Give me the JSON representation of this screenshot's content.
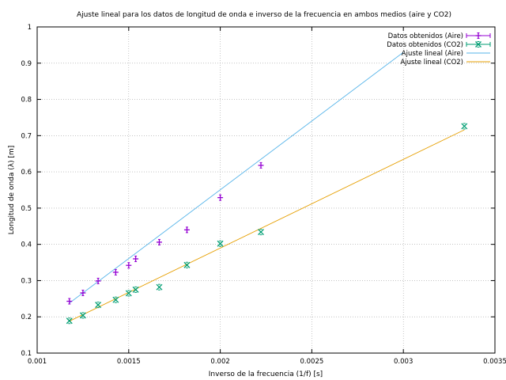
{
  "chart_data": {
    "type": "scatter",
    "title": "Ajuste lineal para los datos de longitud de onda e inverso de la frecuencia en ambos medios (aire y CO2)",
    "xlabel": "Inverso de la frecuencia (1/f) [s]",
    "ylabel": "Longitud de onda (λ) [m]",
    "xlim": [
      0.001,
      0.0035
    ],
    "ylim": [
      0.1,
      1.0
    ],
    "x_ticks": [
      "0.001",
      "0.0015",
      "0.002",
      "0.0025",
      "0.003",
      "0.0035"
    ],
    "y_ticks": [
      "0.1",
      "0.2",
      "0.3",
      "0.4",
      "0.5",
      "0.6",
      "0.7",
      "0.8",
      "0.9",
      "1"
    ],
    "grid": true,
    "legend_position": "top-right",
    "series": [
      {
        "name": "Datos obtenidos (Aire)",
        "kind": "points",
        "marker": "plus",
        "color": "#9400d3",
        "x": [
          0.001176,
          0.00125,
          0.001333,
          0.001429,
          0.0015,
          0.001538,
          0.001667,
          0.001818,
          0.002,
          0.002222
        ],
        "y": [
          0.243,
          0.266,
          0.299,
          0.323,
          0.342,
          0.36,
          0.406,
          0.44,
          0.529,
          0.618
        ]
      },
      {
        "name": "Datos obtenidos (CO2)",
        "kind": "points",
        "marker": "cross",
        "color": "#009e73",
        "x": [
          0.001176,
          0.00125,
          0.001333,
          0.001429,
          0.0015,
          0.001538,
          0.001667,
          0.001818,
          0.002,
          0.002222,
          0.003333
        ],
        "y": [
          0.189,
          0.204,
          0.233,
          0.247,
          0.265,
          0.275,
          0.282,
          0.343,
          0.402,
          0.434,
          0.726
        ]
      },
      {
        "name": "Ajuste lineal (Aire)",
        "kind": "line",
        "color": "#56b4e9",
        "x": [
          0.001176,
          0.003
        ],
        "y": [
          0.238,
          0.93
        ]
      },
      {
        "name": "Ajuste lineal (CO2)",
        "kind": "line",
        "color": "#e69f00",
        "x": [
          0.001176,
          0.003333
        ],
        "y": [
          0.188,
          0.716
        ]
      }
    ]
  }
}
